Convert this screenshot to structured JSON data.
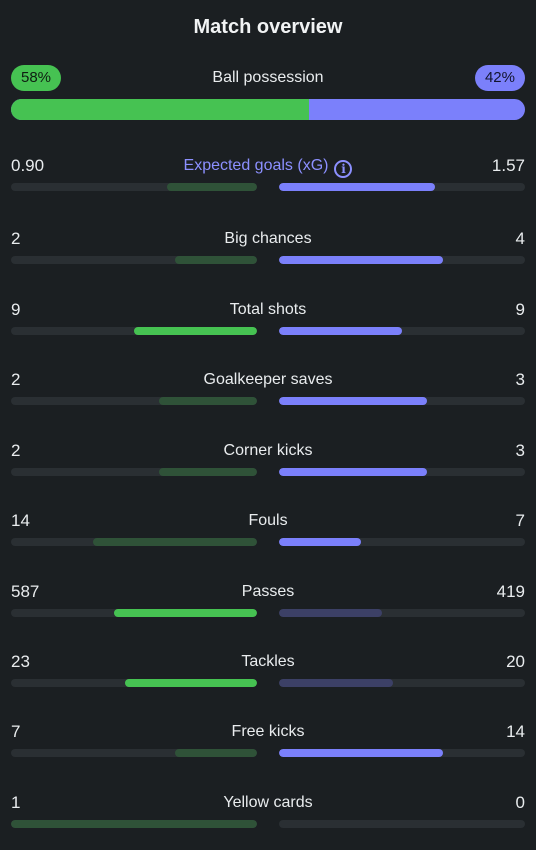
{
  "title": "Match overview",
  "possession": {
    "label": "Ball possession",
    "home_pct": "58%",
    "away_pct": "42%",
    "home_fraction": 0.58
  },
  "stats": [
    {
      "label": "Expected goals (xG)",
      "home": "0.90",
      "away": "1.57",
      "home_share": 0.365,
      "away_share": 0.635,
      "leader": "away",
      "info_icon": "info-icon"
    },
    {
      "label": "Big chances",
      "home": "2",
      "away": "4",
      "home_share": 0.333,
      "away_share": 0.667,
      "leader": "away"
    },
    {
      "label": "Total shots",
      "home": "9",
      "away": "9",
      "home_share": 0.5,
      "away_share": 0.5,
      "leader": "tie"
    },
    {
      "label": "Goalkeeper saves",
      "home": "2",
      "away": "3",
      "home_share": 0.4,
      "away_share": 0.6,
      "leader": "away"
    },
    {
      "label": "Corner kicks",
      "home": "2",
      "away": "3",
      "home_share": 0.4,
      "away_share": 0.6,
      "leader": "away"
    },
    {
      "label": "Fouls",
      "home": "14",
      "away": "7",
      "home_share": 0.667,
      "away_share": 0.333,
      "leader": "away"
    },
    {
      "label": "Passes",
      "home": "587",
      "away": "419",
      "home_share": 0.583,
      "away_share": 0.417,
      "leader": "home"
    },
    {
      "label": "Tackles",
      "home": "23",
      "away": "20",
      "home_share": 0.535,
      "away_share": 0.465,
      "leader": "home"
    },
    {
      "label": "Free kicks",
      "home": "7",
      "away": "14",
      "home_share": 0.333,
      "away_share": 0.667,
      "leader": "away"
    },
    {
      "label": "Yellow cards",
      "home": "1",
      "away": "0",
      "home_share": 1.0,
      "away_share": 0.0,
      "leader": "away"
    }
  ],
  "colors": {
    "home": "#46c252",
    "away": "#7b80fb",
    "background": "#1b1f22"
  }
}
